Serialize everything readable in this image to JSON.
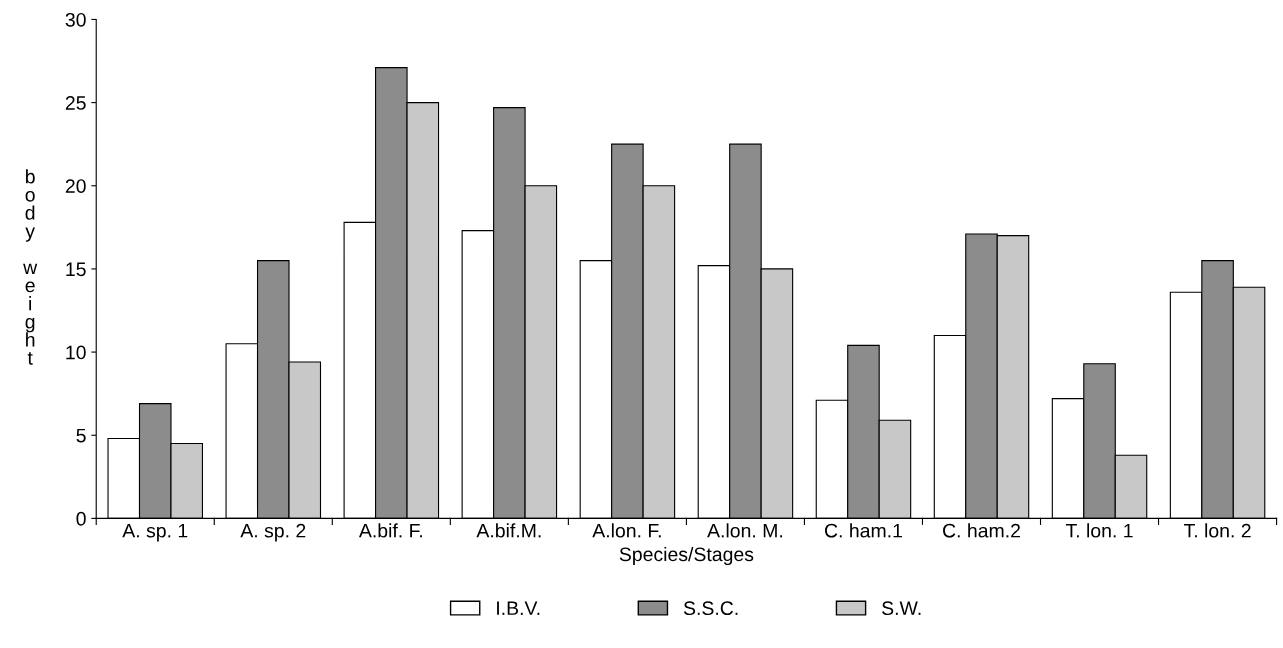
{
  "chart_data": {
    "type": "bar",
    "xlabel": "Species/Stages",
    "ylabel": "body weight",
    "categories": [
      "A. sp. 1",
      "A. sp. 2",
      "A.bif. F.",
      "A.bif.M.",
      "A.lon. F.",
      "A.lon. M.",
      "C. ham.1",
      "C. ham.2",
      "T. lon. 1",
      "T. lon. 2"
    ],
    "series": [
      {
        "name": "I.B.V.",
        "color": "#ffffff",
        "values": [
          4.8,
          10.5,
          17.8,
          17.3,
          15.5,
          15.2,
          7.1,
          11,
          7.2,
          13.6
        ]
      },
      {
        "name": "S.S.C.",
        "color": "#8c8c8c",
        "values": [
          6.9,
          15.5,
          27.1,
          24.7,
          22.5,
          22.5,
          10.4,
          17.1,
          9.3,
          15.5
        ]
      },
      {
        "name": "S.W.",
        "color": "#c8c8c8",
        "values": [
          4.5,
          9.4,
          25,
          20,
          20,
          15,
          5.9,
          17,
          3.8,
          13.9
        ]
      }
    ],
    "ylim": [
      0,
      30
    ],
    "yticks": [
      0,
      5,
      10,
      15,
      20,
      25,
      30
    ],
    "grid": false,
    "legend": "bottom"
  }
}
